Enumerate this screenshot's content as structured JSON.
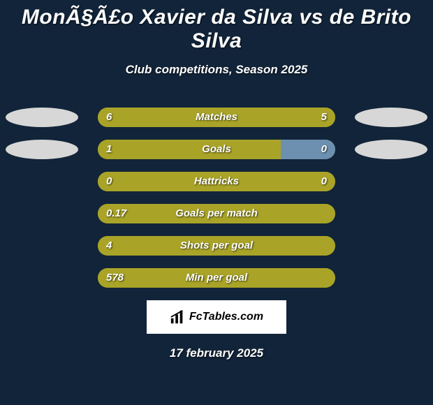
{
  "background_color": "#122439",
  "title": {
    "text": "MonÃ§Ã£o Xavier da Silva vs de Brito Silva",
    "fontsize": 30,
    "color": "#ffffff"
  },
  "subtitle": {
    "text": "Club competitions, Season 2025",
    "fontsize": 17,
    "color": "#ffffff"
  },
  "chart": {
    "type": "comparison-bars",
    "track_width": 340,
    "track_height": 28,
    "track_border_radius": 14,
    "track_bg": "#a9a427",
    "left_bar_color": "#a9a427",
    "oval_color": "#d7d7d7",
    "text_color": "#ffffff",
    "rows": [
      {
        "label": "Matches",
        "left": "6",
        "right": "5",
        "left_pct": 55,
        "right_pct": 45,
        "show_left_oval": true,
        "show_right_oval": true
      },
      {
        "label": "Goals",
        "left": "1",
        "right": "0",
        "left_pct": 77,
        "right_pct": 23,
        "show_left_oval": true,
        "show_right_oval": true,
        "right_bar_color": "#6d90b0"
      },
      {
        "label": "Hattricks",
        "left": "0",
        "right": "0",
        "left_pct": 100,
        "right_pct": 0,
        "show_left_oval": false,
        "show_right_oval": false
      },
      {
        "label": "Goals per match",
        "left": "0.17",
        "right": "",
        "left_pct": 100,
        "right_pct": 0,
        "show_left_oval": false,
        "show_right_oval": false
      },
      {
        "label": "Shots per goal",
        "left": "4",
        "right": "",
        "left_pct": 100,
        "right_pct": 0,
        "show_left_oval": false,
        "show_right_oval": false
      },
      {
        "label": "Min per goal",
        "left": "578",
        "right": "",
        "left_pct": 100,
        "right_pct": 0,
        "show_left_oval": false,
        "show_right_oval": false
      }
    ]
  },
  "badge": {
    "text": "FcTables.com",
    "bg": "#ffffff",
    "text_color": "#000000",
    "icon_color": "#000000"
  },
  "date": {
    "text": "17 february 2025",
    "fontsize": 17,
    "color": "#ffffff"
  }
}
